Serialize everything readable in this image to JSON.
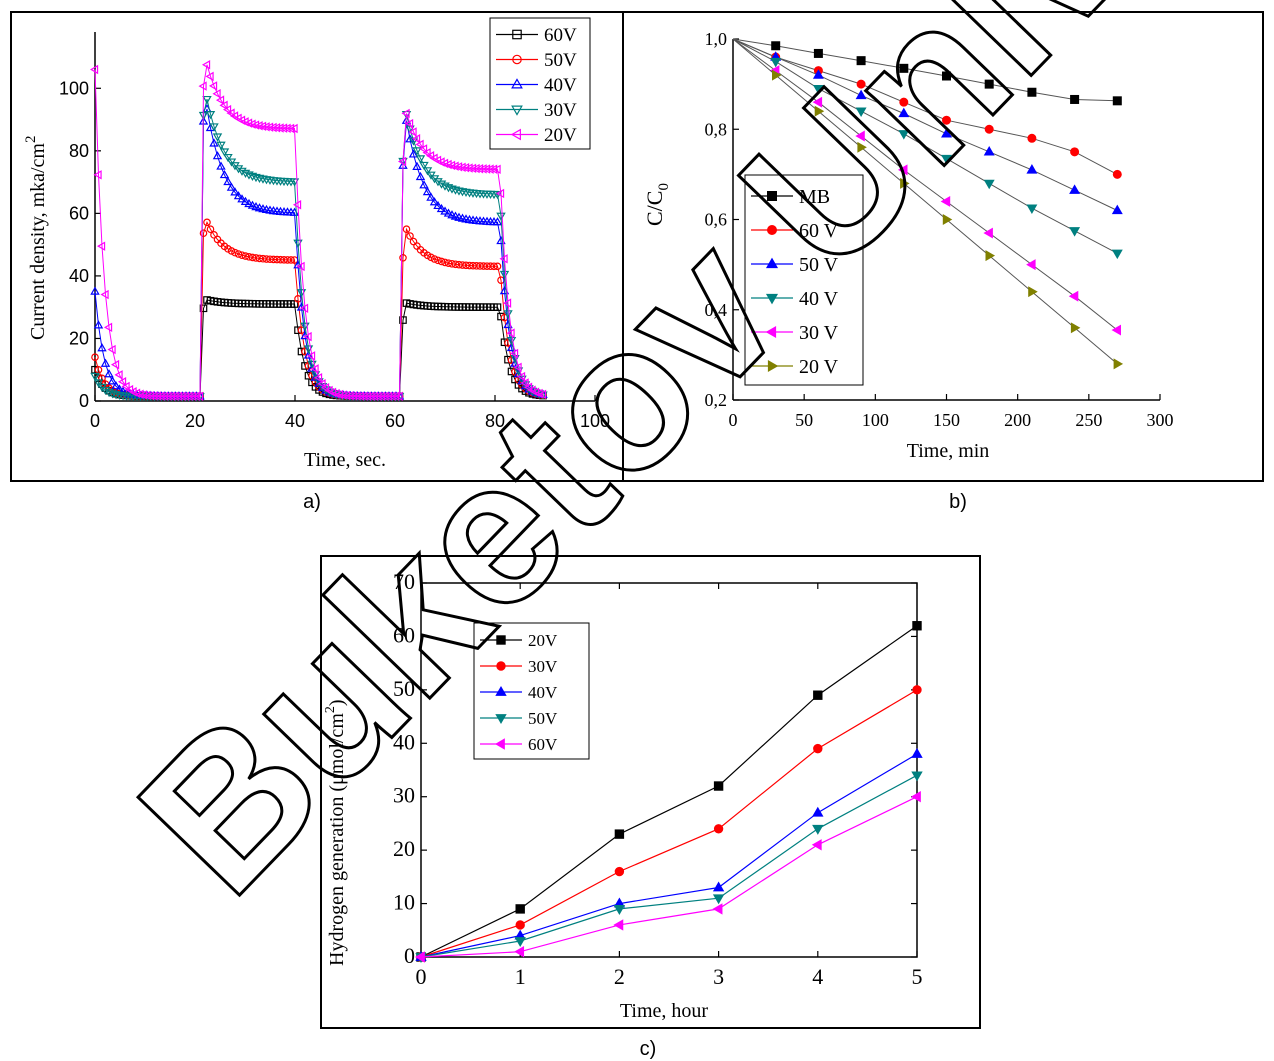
{
  "watermark": "Buketov Unive",
  "chart_data": [
    {
      "panel_label": "a)",
      "type": "line",
      "xlabel": "Time, sec.",
      "ylabel_base": "Current density, mka/cm",
      "ylabel_sup": "2",
      "xlim": [
        0,
        100
      ],
      "ylim": [
        0,
        118
      ],
      "xticks": [
        0,
        20,
        40,
        60,
        80,
        100
      ],
      "yticks": [
        0,
        20,
        40,
        60,
        80,
        100
      ],
      "grid": false,
      "legend_position": "top-right",
      "series": [
        {
          "name": "60V",
          "color": "#000000",
          "marker": "square-open",
          "plateaus": [
            31,
            30
          ]
        },
        {
          "name": "50V",
          "color": "#ff0000",
          "marker": "circle-open",
          "plateaus": [
            45,
            43
          ]
        },
        {
          "name": "40V",
          "color": "#0000ff",
          "marker": "triangle-up-open",
          "plateaus": [
            60,
            57
          ]
        },
        {
          "name": "30V",
          "color": "#008080",
          "marker": "triangle-down-open",
          "plateaus": [
            70,
            66
          ]
        },
        {
          "name": "20V",
          "color": "#ff00ff",
          "marker": "triangle-left-open",
          "plateaus": [
            87,
            74
          ]
        }
      ],
      "light_on_intervals": [
        [
          21,
          40
        ],
        [
          61,
          81
        ]
      ]
    },
    {
      "panel_label": "b)",
      "type": "line",
      "xlabel": "Time, min",
      "ylabel": "C/C",
      "ylabel_sub": "0",
      "xlim": [
        0,
        300
      ],
      "ylim": [
        0.2,
        1.0
      ],
      "xticks": [
        0,
        50,
        100,
        150,
        200,
        250,
        300
      ],
      "yticks": [
        "0,2",
        "0,4",
        "0,6",
        "0,8",
        "1,0"
      ],
      "ytick_values": [
        0.2,
        0.4,
        0.6,
        0.8,
        1.0
      ],
      "grid": false,
      "legend_position": "bottom-left",
      "x": [
        0,
        30,
        60,
        90,
        120,
        150,
        180,
        210,
        240,
        270
      ],
      "series": [
        {
          "name": "MB",
          "color": "#000000",
          "marker": "square",
          "values": [
            1.0,
            0.985,
            0.968,
            0.952,
            0.935,
            0.918,
            0.9,
            0.882,
            0.866,
            0.863
          ]
        },
        {
          "name": "60 V",
          "color": "#ff0000",
          "marker": "circle",
          "values": [
            1.0,
            0.96,
            0.93,
            0.9,
            0.86,
            0.82,
            0.8,
            0.78,
            0.75,
            0.7
          ]
        },
        {
          "name": "50 V",
          "color": "#0000ff",
          "marker": "triangle-up",
          "values": [
            1.0,
            0.96,
            0.92,
            0.875,
            0.835,
            0.79,
            0.75,
            0.71,
            0.665,
            0.62
          ]
        },
        {
          "name": "40 V",
          "color": "#008080",
          "marker": "triangle-down",
          "values": [
            1.0,
            0.95,
            0.89,
            0.84,
            0.79,
            0.735,
            0.68,
            0.625,
            0.575,
            0.525
          ]
        },
        {
          "name": "30 V",
          "color": "#ff00ff",
          "marker": "triangle-left",
          "values": [
            1.0,
            0.93,
            0.86,
            0.785,
            0.71,
            0.64,
            0.57,
            0.5,
            0.43,
            0.355
          ]
        },
        {
          "name": "20 V",
          "color": "#808000",
          "marker": "triangle-right",
          "values": [
            1.0,
            0.92,
            0.84,
            0.76,
            0.68,
            0.6,
            0.52,
            0.44,
            0.36,
            0.28
          ]
        }
      ]
    },
    {
      "panel_label": "c)",
      "type": "line",
      "xlabel": "Time, hour",
      "ylabel_base": "Hydrogen generation  (μmol/cm",
      "ylabel_sup": "2",
      "ylabel_end": ")",
      "xlim": [
        0,
        5
      ],
      "ylim": [
        0,
        70
      ],
      "xticks": [
        0,
        1,
        2,
        3,
        4,
        5
      ],
      "yticks": [
        0,
        10,
        20,
        30,
        40,
        50,
        60,
        70
      ],
      "grid": false,
      "legend_position": "top-left",
      "x": [
        0,
        1,
        2,
        3,
        4,
        5
      ],
      "series": [
        {
          "name": "20V",
          "color": "#000000",
          "marker": "square",
          "values": [
            0,
            9,
            23,
            32,
            49,
            62
          ]
        },
        {
          "name": "30V",
          "color": "#ff0000",
          "marker": "circle",
          "values": [
            0,
            6,
            16,
            24,
            39,
            50
          ]
        },
        {
          "name": "40V",
          "color": "#0000ff",
          "marker": "triangle-up",
          "values": [
            0,
            4,
            10,
            13,
            27,
            38
          ]
        },
        {
          "name": "50V",
          "color": "#008080",
          "marker": "triangle-down",
          "values": [
            0,
            3,
            9,
            11,
            24,
            34
          ]
        },
        {
          "name": "60V",
          "color": "#ff00ff",
          "marker": "triangle-left",
          "values": [
            0,
            1,
            6,
            9,
            21,
            30
          ]
        }
      ]
    }
  ]
}
